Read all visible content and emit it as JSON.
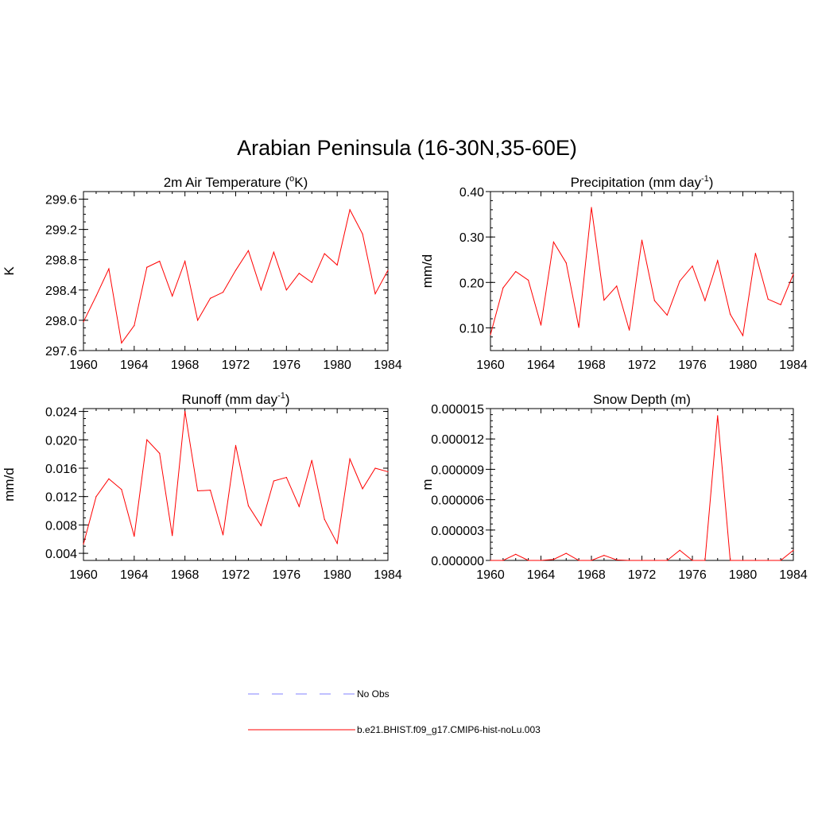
{
  "title": "Arabian Peninsula (16-30N,35-60E)",
  "legend": {
    "obs_label": "No Obs",
    "obs_color": "#9a9aff",
    "model_label": "b.e21.BHIST.f09_g17.CMIP6-hist-noLu.003",
    "model_color": "#ff0000"
  },
  "chart_data": [
    {
      "id": "temperature",
      "type": "line",
      "title": "2m Air Temperature (",
      "title_sup": "o",
      "title_suffix": "K)",
      "ylabel": "K",
      "xlim": [
        1960,
        1984
      ],
      "ylim": [
        297.6,
        299.7
      ],
      "xticks": [
        1960,
        1964,
        1968,
        1972,
        1976,
        1980,
        1984
      ],
      "xtick_labels": [
        "1960",
        "1964",
        "1968",
        "1972",
        "1976",
        "1980",
        "1984"
      ],
      "yticks": [
        297.6,
        298.0,
        298.4,
        298.8,
        299.2,
        299.6
      ],
      "ytick_labels": [
        "297.6",
        "298.0",
        "298.4",
        "298.8",
        "299.2",
        "299.6"
      ],
      "y_minor_step": 0.1,
      "color": "#ff0000",
      "x": [
        1960,
        1961,
        1962,
        1963,
        1964,
        1965,
        1966,
        1967,
        1968,
        1969,
        1970,
        1971,
        1972,
        1973,
        1974,
        1975,
        1976,
        1977,
        1978,
        1979,
        1980,
        1981,
        1982,
        1983,
        1984
      ],
      "y": [
        297.98,
        298.32,
        298.68,
        297.7,
        297.93,
        298.7,
        298.78,
        298.32,
        298.78,
        298.0,
        298.29,
        298.37,
        298.66,
        298.92,
        298.4,
        298.9,
        298.4,
        298.62,
        298.5,
        298.88,
        298.73,
        299.46,
        299.14,
        298.35,
        298.66
      ]
    },
    {
      "id": "precipitation",
      "type": "line",
      "title": "Precipitation (mm day",
      "title_sup": "-1",
      "title_suffix": ")",
      "ylabel": "mm/d",
      "xlim": [
        1960,
        1984
      ],
      "ylim": [
        0.05,
        0.4
      ],
      "xticks": [
        1960,
        1964,
        1968,
        1972,
        1976,
        1980,
        1984
      ],
      "xtick_labels": [
        "1960",
        "1964",
        "1968",
        "1972",
        "1976",
        "1980",
        "1984"
      ],
      "yticks": [
        0.1,
        0.2,
        0.3,
        0.4
      ],
      "ytick_labels": [
        "0.10",
        "0.20",
        "0.30",
        "0.40"
      ],
      "y_minor_step": 0.02,
      "color": "#ff0000",
      "x": [
        1960,
        1961,
        1962,
        1963,
        1964,
        1965,
        1966,
        1967,
        1968,
        1969,
        1970,
        1971,
        1972,
        1973,
        1974,
        1975,
        1976,
        1977,
        1978,
        1979,
        1980,
        1981,
        1982,
        1983,
        1984
      ],
      "y": [
        0.085,
        0.188,
        0.224,
        0.205,
        0.106,
        0.289,
        0.243,
        0.101,
        0.365,
        0.161,
        0.192,
        0.095,
        0.293,
        0.16,
        0.128,
        0.203,
        0.236,
        0.16,
        0.248,
        0.13,
        0.083,
        0.264,
        0.163,
        0.151,
        0.218
      ]
    },
    {
      "id": "runoff",
      "type": "line",
      "title": "Runoff (mm day",
      "title_sup": "-1",
      "title_suffix": ")",
      "ylabel": "mm/d",
      "xlim": [
        1960,
        1984
      ],
      "ylim": [
        0.003,
        0.0244
      ],
      "xticks": [
        1960,
        1964,
        1968,
        1972,
        1976,
        1980,
        1984
      ],
      "xtick_labels": [
        "1960",
        "1964",
        "1968",
        "1972",
        "1976",
        "1980",
        "1984"
      ],
      "yticks": [
        0.004,
        0.008,
        0.012,
        0.016,
        0.02,
        0.024
      ],
      "ytick_labels": [
        "0.004",
        "0.008",
        "0.012",
        "0.016",
        "0.020",
        "0.024"
      ],
      "y_minor_step": 0.001,
      "color": "#ff0000",
      "x": [
        1960,
        1961,
        1962,
        1963,
        1964,
        1965,
        1966,
        1967,
        1968,
        1969,
        1970,
        1971,
        1972,
        1973,
        1974,
        1975,
        1976,
        1977,
        1978,
        1979,
        1980,
        1981,
        1982,
        1983,
        1984
      ],
      "y": [
        0.0053,
        0.012,
        0.0145,
        0.013,
        0.0064,
        0.02,
        0.0181,
        0.0065,
        0.024,
        0.0128,
        0.0129,
        0.0066,
        0.0192,
        0.0107,
        0.0079,
        0.0142,
        0.0147,
        0.0106,
        0.0171,
        0.0088,
        0.0054,
        0.0173,
        0.0131,
        0.016,
        0.0155
      ]
    },
    {
      "id": "snow",
      "type": "line",
      "title": "Snow Depth (m)",
      "title_sup": "",
      "title_suffix": "",
      "ylabel": "m",
      "xlim": [
        1960,
        1984
      ],
      "ylim": [
        0,
        1.5e-05
      ],
      "xticks": [
        1960,
        1964,
        1968,
        1972,
        1976,
        1980,
        1984
      ],
      "xtick_labels": [
        "1960",
        "1964",
        "1968",
        "1972",
        "1976",
        "1980",
        "1984"
      ],
      "yticks": [
        0,
        3e-06,
        6e-06,
        9e-06,
        1.2e-05,
        1.5e-05
      ],
      "ytick_labels": [
        "0.000000",
        "0.000003",
        "0.000006",
        "0.000009",
        "0.000012",
        "0.000015"
      ],
      "y_minor_step": 6e-07,
      "color": "#ff0000",
      "x": [
        1960,
        1961,
        1962,
        1963,
        1964,
        1965,
        1966,
        1967,
        1968,
        1969,
        1970,
        1971,
        1972,
        1973,
        1974,
        1975,
        1976,
        1977,
        1978,
        1979,
        1980,
        1981,
        1982,
        1983,
        1984
      ],
      "y": [
        0,
        0,
        6e-07,
        0,
        0,
        1e-07,
        7e-07,
        0,
        0,
        5e-07,
        5e-08,
        0,
        0,
        0,
        0,
        1e-06,
        0,
        0,
        1.43e-05,
        0,
        0,
        0,
        0,
        0,
        1e-06
      ]
    }
  ]
}
